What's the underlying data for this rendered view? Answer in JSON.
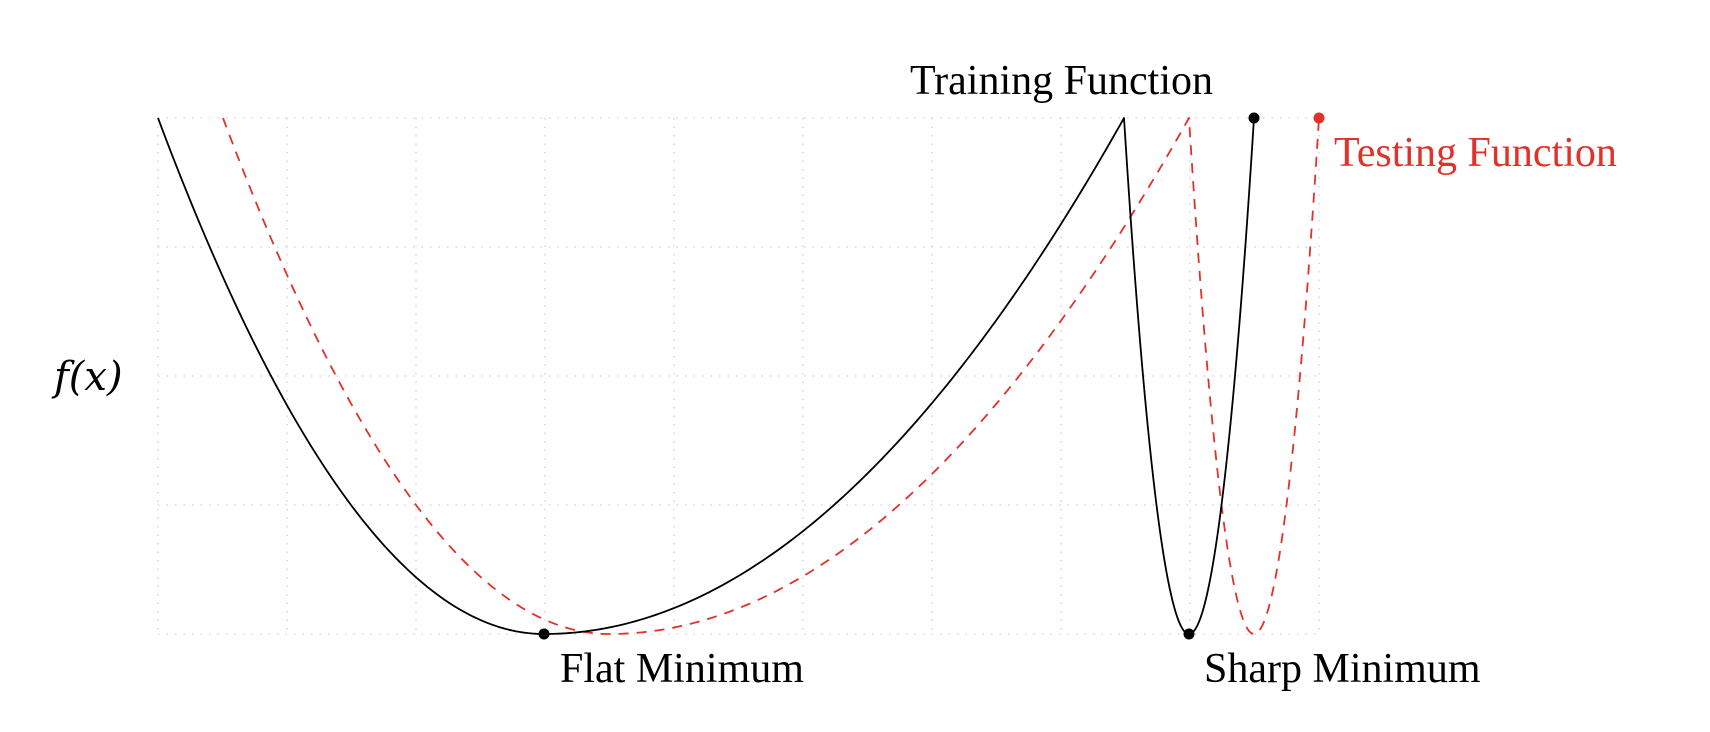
{
  "labels": {
    "y_axis": "f(x)",
    "training_function": "Training Function",
    "testing_function": "Testing Function",
    "flat_minimum": "Flat Minimum",
    "sharp_minimum": "Sharp Minimum"
  },
  "colors": {
    "training": "#000000",
    "testing": "#e0312b",
    "grid": "#cfcfcf"
  }
}
